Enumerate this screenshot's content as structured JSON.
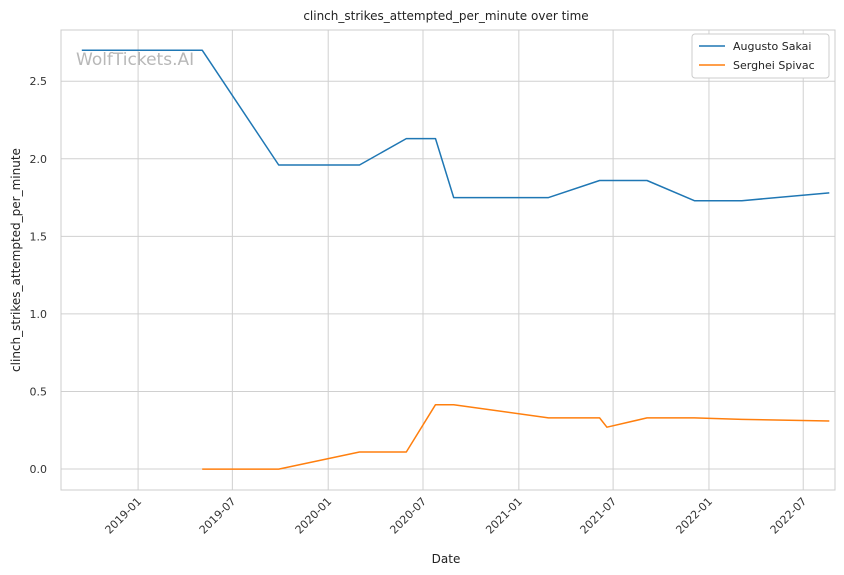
{
  "chart_data": {
    "type": "line",
    "title": "clinch_strikes_attempted_per_minute over time",
    "xlabel": "Date",
    "ylabel": "clinch_strikes_attempted_per_minute",
    "watermark": "WolfTickets.AI",
    "x_range": [
      "2018-08-06",
      "2022-08-31"
    ],
    "ylim": [
      -0.135,
      2.83
    ],
    "x_ticks": [
      "2019-01",
      "2019-07",
      "2020-01",
      "2020-07",
      "2021-01",
      "2021-07",
      "2022-01",
      "2022-07"
    ],
    "y_ticks": [
      0.0,
      0.5,
      1.0,
      1.5,
      2.0,
      2.5
    ],
    "y_tick_labels": [
      "0.0",
      "0.5",
      "1.0",
      "1.5",
      "2.0",
      "2.5"
    ],
    "grid": true,
    "legend_position": "top-right",
    "colors": {
      "series1": "#1f77b4",
      "series2": "#ff7f0e",
      "grid": "#d0d0d0",
      "frame": "#cccccc"
    },
    "series": [
      {
        "name": "Augusto Sakai",
        "x": [
          "2018-09-15",
          "2019-05-04",
          "2019-09-28",
          "2020-03-01",
          "2020-05-30",
          "2020-07-25",
          "2020-08-29",
          "2021-02-27",
          "2021-06-05",
          "2021-09-04",
          "2021-12-04",
          "2022-03-05",
          "2022-08-20"
        ],
        "y": [
          2.7,
          2.7,
          1.96,
          1.96,
          2.13,
          2.13,
          1.75,
          1.75,
          1.86,
          1.86,
          1.73,
          1.73,
          1.78
        ]
      },
      {
        "name": "Serghei Spivac",
        "x": [
          "2019-05-04",
          "2019-09-28",
          "2020-03-01",
          "2020-05-30",
          "2020-07-25",
          "2020-08-29",
          "2021-02-27",
          "2021-06-05",
          "2021-06-19",
          "2021-09-04",
          "2021-12-04",
          "2022-03-05",
          "2022-08-20"
        ],
        "y": [
          0.0,
          0.0,
          0.11,
          0.11,
          0.415,
          0.415,
          0.33,
          0.33,
          0.27,
          0.33,
          0.33,
          0.32,
          0.31
        ]
      }
    ]
  }
}
